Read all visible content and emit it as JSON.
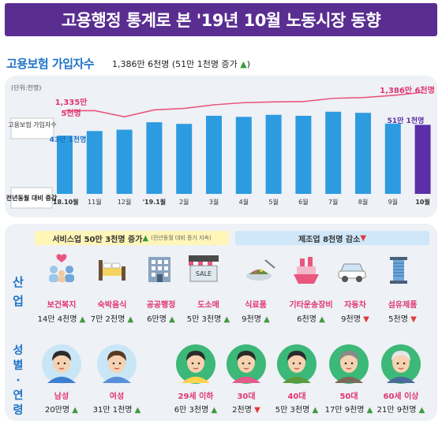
{
  "header": {
    "title": "고용행정 통계로 본 '19년 10월 노동시장 동향"
  },
  "insured": {
    "title": "고용보험 가입자수",
    "summary": "1,386만 6천명 (51만 1천명 증가 ",
    "summary_close": ")",
    "unit": "(단위:천명)",
    "legend_line": "고용보험 가입자수",
    "legend_bar": "전년동월 대비 증감",
    "first_line_label_1": "1,335만",
    "first_line_label_2": "5천명",
    "last_line_label": "1,386만 6천명",
    "first_bar_label": "43만 1천명",
    "last_bar_label": "51만 1천명"
  },
  "chart_data": {
    "type": "bar",
    "categories": [
      "'18.10월",
      "11월",
      "12월",
      "'19.1월",
      "2월",
      "3월",
      "4월",
      "5월",
      "6월",
      "7월",
      "8월",
      "9월",
      "10월"
    ],
    "series": [
      {
        "name": "전년동월 대비 증감",
        "values": [
          431,
          465,
          475,
          530,
          518,
          578,
          570,
          585,
          578,
          608,
          600,
          520,
          511
        ]
      },
      {
        "name": "고용보험 가입자수",
        "values": [
          13355,
          13360,
          13190,
          13380,
          13420,
          13520,
          13580,
          13600,
          13610,
          13700,
          13720,
          13780,
          13866
        ]
      }
    ],
    "bar_ylim": [
      0,
      700
    ],
    "line_ylim": [
      12800,
      14000
    ]
  },
  "industry": {
    "side": [
      "산",
      "업"
    ],
    "service_tag": "서비스업 50만 3천명 증가 ",
    "service_note": "(전년동월 대비 증가 지속)",
    "manuf_tag": "제조업 8천명 감소 ",
    "items": [
      {
        "name": "보건복지",
        "value": "14만 4천명",
        "dir": "up",
        "icon": "family-icon"
      },
      {
        "name": "숙박음식",
        "value": "7만 2천명",
        "dir": "up",
        "icon": "bed-icon"
      },
      {
        "name": "공공행정",
        "value": "6만명",
        "dir": "up",
        "icon": "building-icon"
      },
      {
        "name": "도소매",
        "value": "5만 3천명",
        "dir": "up",
        "icon": "shop-icon"
      },
      {
        "name": "식료품",
        "value": "9천명",
        "dir": "up",
        "icon": "food-plate-icon"
      },
      {
        "name": "기타운송장비",
        "value": "6천명",
        "dir": "up",
        "icon": "ship-icon"
      },
      {
        "name": "자동차",
        "value": "9천명",
        "dir": "down",
        "icon": "car-icon"
      },
      {
        "name": "섬유제품",
        "value": "5천명",
        "dir": "down",
        "icon": "thread-spool-icon"
      }
    ],
    "arrow_up": "▲",
    "arrow_down": "▼"
  },
  "gender_age": {
    "side": [
      "성",
      "별",
      "·",
      "연",
      "령"
    ],
    "items": [
      {
        "name": "남성",
        "value": "20만명",
        "dir": "up",
        "icon": "man-icon",
        "hair": "#2b2b2b",
        "bg": "#c9e6f7",
        "shirt": "#3c7fd0"
      },
      {
        "name": "여성",
        "value": "31만 1천명",
        "dir": "up",
        "icon": "woman-icon",
        "hair": "#5a3a24",
        "bg": "#c9e6f7",
        "shirt": "#5a8fd8"
      },
      {
        "name": "29세 이하",
        "value": "6만 3천명",
        "dir": "up",
        "icon": "youth-icon",
        "hair": "#2b2b2b",
        "bg": "#3cb878",
        "shirt": "#ffd34d"
      },
      {
        "name": "30대",
        "value": "2천명",
        "dir": "down",
        "icon": "thirties-icon",
        "hair": "#2b2b2b",
        "bg": "#3cb878",
        "shirt": "#e65a8a"
      },
      {
        "name": "40대",
        "value": "5만 3천명",
        "dir": "up",
        "icon": "forties-icon",
        "hair": "#2b2b2b",
        "bg": "#3cb878",
        "shirt": "#5a9a3c"
      },
      {
        "name": "50대",
        "value": "17만 9천명",
        "dir": "up",
        "icon": "fifties-icon",
        "hair": "#8a8a8a",
        "bg": "#3cb878",
        "shirt": "#7a6a5a"
      },
      {
        "name": "60세 이상",
        "value": "21만 9천명",
        "dir": "up",
        "icon": "senior-icon",
        "hair": "#e5e5e5",
        "bg": "#3cb878",
        "shirt": "#4a6a9a"
      }
    ]
  },
  "colors": {
    "bar": "#2d9be0",
    "bar_last": "#5b2fa8",
    "line": "#e9577f",
    "accent": "#1e73c8"
  }
}
